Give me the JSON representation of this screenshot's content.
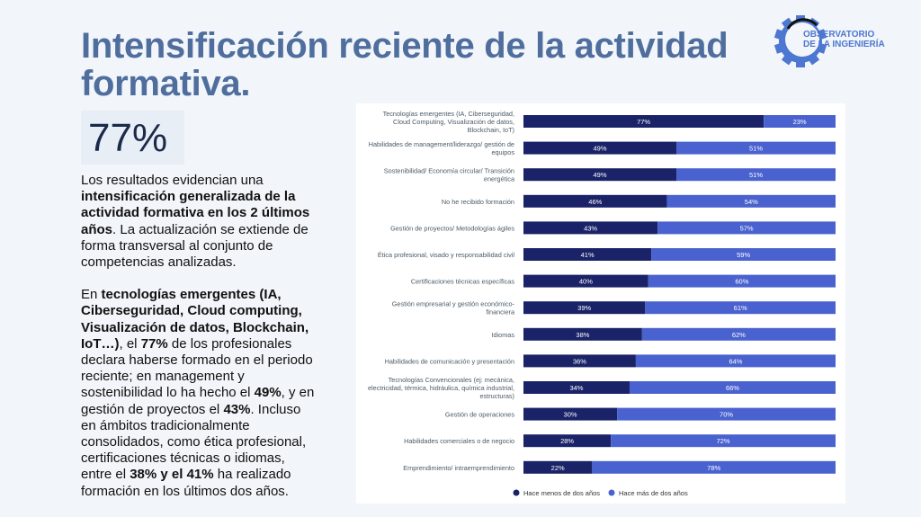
{
  "title": "Intensificación reciente de la actividad formativa.",
  "kpi": "77%",
  "logo": {
    "line1": "OBSERVATORIO",
    "line2": "DE LA INGENIERÍA"
  },
  "body": {
    "p1": [
      {
        "t": "Los resultados evidencian una "
      },
      {
        "t": "intensificación generalizada de la actividad formativa en los 2 últimos años",
        "b": true
      },
      {
        "t": ". La actualización se extiende de forma transversal al conjunto de competencias analizadas."
      }
    ],
    "p2": [
      {
        "t": "En "
      },
      {
        "t": "tecnologías emergentes (IA, Ciberseguridad, Cloud computing, Visualización de datos, Blockchain, IoT…)",
        "b": true
      },
      {
        "t": ", el "
      },
      {
        "t": "77%",
        "b": true
      },
      {
        "t": " de los profesionales declara haberse formado en el periodo reciente; en management y sostenibilidad lo ha hecho el "
      },
      {
        "t": "49%",
        "b": true
      },
      {
        "t": ", y en gestión de proyectos el "
      },
      {
        "t": "43%",
        "b": true
      },
      {
        "t": ". Incluso en ámbitos tradicionalmente consolidados, como ética profesional, certificaciones técnicas o idiomas, entre el "
      },
      {
        "t": "38% y el 41%",
        "b": true
      },
      {
        "t": " ha realizado formación en los últimos dos años."
      }
    ]
  },
  "chart_data": {
    "type": "bar",
    "stacked": true,
    "orientation": "horizontal",
    "categories": [
      [
        "Tecnologías emergentes (IA, Ciberseguridad,",
        "Cloud Computing, Visualización de datos,",
        "Blockchain, IoT)"
      ],
      [
        "Habilidades de management/liderazgo/ gestión de",
        "equipos"
      ],
      [
        "Sostenibilidad/ Economía circular/ Transición",
        "energética"
      ],
      [
        "No he recibido formación"
      ],
      [
        "Gestión de proyectos/ Metodologías ágiles"
      ],
      [
        "Ética profesional, visado y responsabilidad civil"
      ],
      [
        "Certificaciones técnicas específicas"
      ],
      [
        "Gestión empresarial y gestión económico-",
        "financiera"
      ],
      [
        "Idiomas"
      ],
      [
        "Habilidades de comunicación y presentación"
      ],
      [
        "Tecnologías Convencionales (ej: mecánica,",
        "electricidad, térmica, hidráulica, química industrial,",
        "estructuras)"
      ],
      [
        "Gestión de operaciones"
      ],
      [
        "Habilidades comerciales o de negocio"
      ],
      [
        "Emprendimiento/ intraemprendimiento"
      ]
    ],
    "series": [
      {
        "name": "Hace menos de dos años",
        "color": "#1a2368",
        "values": [
          77,
          49,
          49,
          46,
          43,
          41,
          40,
          39,
          38,
          36,
          34,
          30,
          28,
          22
        ]
      },
      {
        "name": "Hace más de dos años",
        "color": "#4a62cf",
        "values": [
          23,
          51,
          51,
          54,
          57,
          59,
          60,
          61,
          62,
          64,
          66,
          70,
          72,
          78
        ]
      }
    ],
    "xlim": [
      0,
      100
    ],
    "legend": "bottom"
  }
}
